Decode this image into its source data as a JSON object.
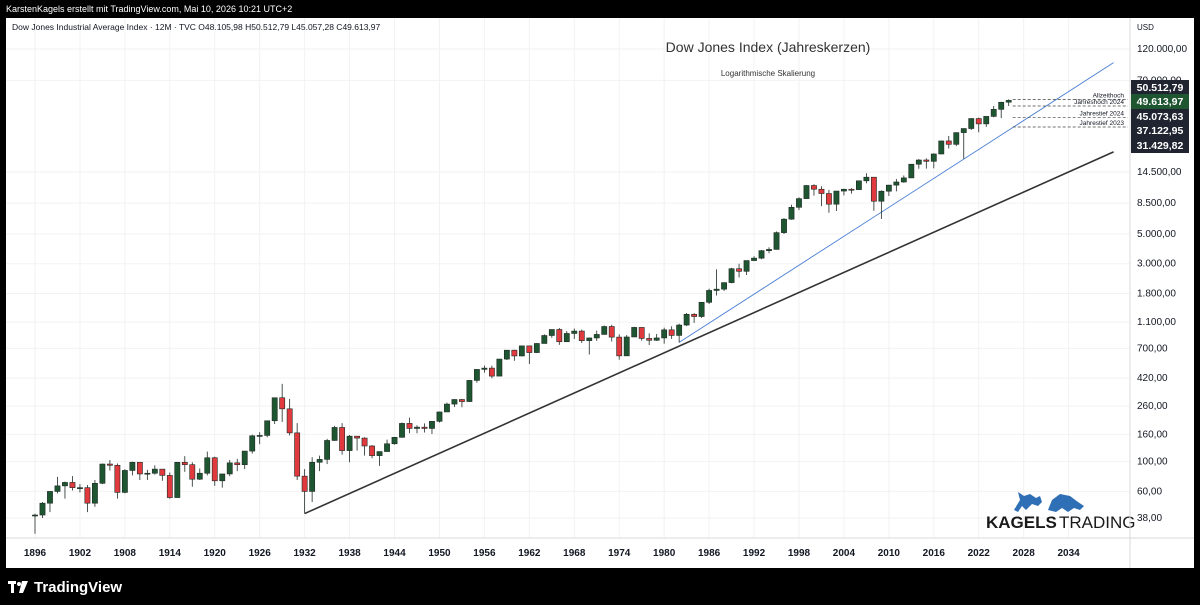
{
  "header": {
    "caption": "KarstenKagels erstellt mit TradingView.com, Mai 10, 2026 10:21 UTC+2"
  },
  "symbol_line": "Dow Jones Industrial Average Index · 12M · TVC  O48.105,98  H50.512,79  L45.057,28  C49.613,97",
  "footer": {
    "brand": "TradingView"
  },
  "watermark": {
    "text1": "KAGELS",
    "text2": "TRADING"
  },
  "colors": {
    "up": "#1e5631",
    "down": "#e0393e",
    "trend_primary": "#333333",
    "trend_secondary": "#4a7fd4",
    "label_dark": "#1f2430",
    "label_green": "#1e5631"
  },
  "chart_data": {
    "type": "candlestick",
    "title": "Dow Jones Index (Jahreskerzen)",
    "subtitle": "Logarithmische Skalierung",
    "y_axis_unit": "USD",
    "y_scale": "log",
    "y_ticks": [
      38,
      60,
      100,
      160,
      260,
      420,
      700,
      1100,
      1800,
      3000,
      5000,
      8500,
      14500,
      70000,
      120000
    ],
    "y_tick_labels": [
      "38,00",
      "60,00",
      "100,00",
      "160,00",
      "260,00",
      "420,00",
      "700,00",
      "1.100,00",
      "1.800,00",
      "3.000,00",
      "5.000,00",
      "8.500,00",
      "14.500,00",
      "70.000,00",
      "120.000,00"
    ],
    "x_ticks": [
      "1896",
      "1902",
      "1908",
      "1914",
      "1920",
      "1926",
      "1932",
      "1938",
      "1944",
      "1950",
      "1956",
      "1962",
      "1968",
      "1974",
      "1980",
      "1986",
      "1992",
      "1998",
      "2004",
      "2010",
      "2016",
      "2022",
      "2028",
      "2034"
    ],
    "price_labels": [
      {
        "value": 50512.79,
        "text": "50.512,79",
        "color": "dark"
      },
      {
        "value": 49613.97,
        "text": "49.613,97",
        "color": "green"
      },
      {
        "value": 45073.63,
        "text": "45.073,63",
        "color": "dark"
      },
      {
        "value": 37122.95,
        "text": "37.122,95",
        "color": "dark"
      },
      {
        "value": 31429.82,
        "text": "31.429,82",
        "color": "dark"
      }
    ],
    "annotations": [
      {
        "text": "Allzeithoch",
        "value": 50512.79
      },
      {
        "text": "Jahreshoch 2024",
        "value": 45073.63
      },
      {
        "text": "Jahrestief 2024",
        "value": 37122.95
      },
      {
        "text": "Jahrestief 2023",
        "value": 31429.82
      }
    ],
    "trendlines": [
      {
        "x1": 1932,
        "y1": 41,
        "x2": 2040,
        "y2": 20500,
        "color": "primary"
      },
      {
        "x1": 1982,
        "y1": 776,
        "x2": 2040,
        "y2": 95000,
        "color": "secondary"
      }
    ],
    "candles": [
      {
        "x": 1896,
        "o": 40,
        "h": 41,
        "l": 29,
        "c": 40
      },
      {
        "x": 1897,
        "o": 40,
        "h": 50,
        "l": 38,
        "c": 49
      },
      {
        "x": 1898,
        "o": 49,
        "h": 60,
        "l": 42,
        "c": 60
      },
      {
        "x": 1899,
        "o": 60,
        "h": 77,
        "l": 58,
        "c": 66
      },
      {
        "x": 1900,
        "o": 66,
        "h": 71,
        "l": 53,
        "c": 70
      },
      {
        "x": 1901,
        "o": 70,
        "h": 78,
        "l": 61,
        "c": 64
      },
      {
        "x": 1902,
        "o": 64,
        "h": 68,
        "l": 59,
        "c": 64
      },
      {
        "x": 1903,
        "o": 64,
        "h": 67,
        "l": 42,
        "c": 49
      },
      {
        "x": 1904,
        "o": 49,
        "h": 73,
        "l": 46,
        "c": 69
      },
      {
        "x": 1905,
        "o": 69,
        "h": 97,
        "l": 68,
        "c": 96
      },
      {
        "x": 1906,
        "o": 96,
        "h": 103,
        "l": 86,
        "c": 94
      },
      {
        "x": 1907,
        "o": 94,
        "h": 97,
        "l": 53,
        "c": 59
      },
      {
        "x": 1908,
        "o": 59,
        "h": 88,
        "l": 58,
        "c": 86
      },
      {
        "x": 1909,
        "o": 86,
        "h": 100,
        "l": 79,
        "c": 99
      },
      {
        "x": 1910,
        "o": 99,
        "h": 99,
        "l": 73,
        "c": 81
      },
      {
        "x": 1911,
        "o": 81,
        "h": 87,
        "l": 73,
        "c": 82
      },
      {
        "x": 1912,
        "o": 82,
        "h": 94,
        "l": 80,
        "c": 88
      },
      {
        "x": 1913,
        "o": 88,
        "h": 88,
        "l": 72,
        "c": 79
      },
      {
        "x": 1914,
        "o": 79,
        "h": 83,
        "l": 53,
        "c": 54
      },
      {
        "x": 1915,
        "o": 54,
        "h": 99,
        "l": 54,
        "c": 99
      },
      {
        "x": 1916,
        "o": 99,
        "h": 110,
        "l": 84,
        "c": 95
      },
      {
        "x": 1917,
        "o": 95,
        "h": 99,
        "l": 65,
        "c": 74
      },
      {
        "x": 1918,
        "o": 74,
        "h": 89,
        "l": 73,
        "c": 82
      },
      {
        "x": 1919,
        "o": 82,
        "h": 119,
        "l": 79,
        "c": 107
      },
      {
        "x": 1920,
        "o": 107,
        "h": 109,
        "l": 66,
        "c": 72
      },
      {
        "x": 1921,
        "o": 72,
        "h": 81,
        "l": 64,
        "c": 81
      },
      {
        "x": 1922,
        "o": 81,
        "h": 103,
        "l": 78,
        "c": 98
      },
      {
        "x": 1923,
        "o": 98,
        "h": 105,
        "l": 85,
        "c": 95
      },
      {
        "x": 1924,
        "o": 95,
        "h": 120,
        "l": 88,
        "c": 120
      },
      {
        "x": 1925,
        "o": 120,
        "h": 159,
        "l": 115,
        "c": 156
      },
      {
        "x": 1926,
        "o": 156,
        "h": 166,
        "l": 135,
        "c": 157
      },
      {
        "x": 1927,
        "o": 157,
        "h": 202,
        "l": 152,
        "c": 202
      },
      {
        "x": 1928,
        "o": 202,
        "h": 300,
        "l": 191,
        "c": 300
      },
      {
        "x": 1929,
        "o": 300,
        "h": 381,
        "l": 198,
        "c": 248
      },
      {
        "x": 1930,
        "o": 248,
        "h": 294,
        "l": 157,
        "c": 164
      },
      {
        "x": 1931,
        "o": 164,
        "h": 194,
        "l": 73,
        "c": 78
      },
      {
        "x": 1932,
        "o": 78,
        "h": 88,
        "l": 41,
        "c": 60
      },
      {
        "x": 1933,
        "o": 60,
        "h": 108,
        "l": 50,
        "c": 99
      },
      {
        "x": 1934,
        "o": 99,
        "h": 111,
        "l": 85,
        "c": 104
      },
      {
        "x": 1935,
        "o": 104,
        "h": 148,
        "l": 96,
        "c": 144
      },
      {
        "x": 1936,
        "o": 144,
        "h": 185,
        "l": 143,
        "c": 180
      },
      {
        "x": 1937,
        "o": 180,
        "h": 194,
        "l": 113,
        "c": 121
      },
      {
        "x": 1938,
        "o": 121,
        "h": 158,
        "l": 99,
        "c": 155
      },
      {
        "x": 1939,
        "o": 155,
        "h": 155,
        "l": 121,
        "c": 150
      },
      {
        "x": 1940,
        "o": 150,
        "h": 152,
        "l": 111,
        "c": 131
      },
      {
        "x": 1941,
        "o": 131,
        "h": 133,
        "l": 106,
        "c": 111
      },
      {
        "x": 1942,
        "o": 111,
        "h": 119,
        "l": 93,
        "c": 119
      },
      {
        "x": 1943,
        "o": 119,
        "h": 146,
        "l": 119,
        "c": 136
      },
      {
        "x": 1944,
        "o": 136,
        "h": 153,
        "l": 134,
        "c": 152
      },
      {
        "x": 1945,
        "o": 152,
        "h": 196,
        "l": 151,
        "c": 193
      },
      {
        "x": 1946,
        "o": 193,
        "h": 213,
        "l": 163,
        "c": 177
      },
      {
        "x": 1947,
        "o": 177,
        "h": 187,
        "l": 163,
        "c": 181
      },
      {
        "x": 1948,
        "o": 181,
        "h": 193,
        "l": 165,
        "c": 177
      },
      {
        "x": 1949,
        "o": 177,
        "h": 200,
        "l": 161,
        "c": 200
      },
      {
        "x": 1950,
        "o": 200,
        "h": 236,
        "l": 196,
        "c": 235
      },
      {
        "x": 1951,
        "o": 235,
        "h": 276,
        "l": 238,
        "c": 269
      },
      {
        "x": 1952,
        "o": 269,
        "h": 292,
        "l": 256,
        "c": 291
      },
      {
        "x": 1953,
        "o": 291,
        "h": 294,
        "l": 255,
        "c": 281
      },
      {
        "x": 1954,
        "o": 281,
        "h": 404,
        "l": 279,
        "c": 404
      },
      {
        "x": 1955,
        "o": 404,
        "h": 488,
        "l": 388,
        "c": 488
      },
      {
        "x": 1956,
        "o": 488,
        "h": 521,
        "l": 462,
        "c": 499
      },
      {
        "x": 1957,
        "o": 499,
        "h": 520,
        "l": 419,
        "c": 435
      },
      {
        "x": 1958,
        "o": 435,
        "h": 583,
        "l": 436,
        "c": 583
      },
      {
        "x": 1959,
        "o": 583,
        "h": 679,
        "l": 574,
        "c": 679
      },
      {
        "x": 1960,
        "o": 679,
        "h": 685,
        "l": 566,
        "c": 615
      },
      {
        "x": 1961,
        "o": 615,
        "h": 734,
        "l": 610,
        "c": 731
      },
      {
        "x": 1962,
        "o": 731,
        "h": 726,
        "l": 535,
        "c": 652
      },
      {
        "x": 1963,
        "o": 652,
        "h": 767,
        "l": 646,
        "c": 762
      },
      {
        "x": 1964,
        "o": 762,
        "h": 891,
        "l": 766,
        "c": 874
      },
      {
        "x": 1965,
        "o": 874,
        "h": 969,
        "l": 840,
        "c": 969
      },
      {
        "x": 1966,
        "o": 969,
        "h": 995,
        "l": 744,
        "c": 785
      },
      {
        "x": 1967,
        "o": 785,
        "h": 943,
        "l": 786,
        "c": 905
      },
      {
        "x": 1968,
        "o": 905,
        "h": 985,
        "l": 825,
        "c": 943
      },
      {
        "x": 1969,
        "o": 943,
        "h": 968,
        "l": 769,
        "c": 800
      },
      {
        "x": 1970,
        "o": 800,
        "h": 842,
        "l": 631,
        "c": 838
      },
      {
        "x": 1971,
        "o": 838,
        "h": 950,
        "l": 797,
        "c": 890
      },
      {
        "x": 1972,
        "o": 890,
        "h": 1036,
        "l": 889,
        "c": 1020
      },
      {
        "x": 1973,
        "o": 1020,
        "h": 1051,
        "l": 788,
        "c": 850
      },
      {
        "x": 1974,
        "o": 850,
        "h": 891,
        "l": 577,
        "c": 616
      },
      {
        "x": 1975,
        "o": 616,
        "h": 881,
        "l": 632,
        "c": 852
      },
      {
        "x": 1976,
        "o": 852,
        "h": 1014,
        "l": 858,
        "c": 1004
      },
      {
        "x": 1977,
        "o": 1004,
        "h": 999,
        "l": 800,
        "c": 831
      },
      {
        "x": 1978,
        "o": 831,
        "h": 907,
        "l": 742,
        "c": 805
      },
      {
        "x": 1979,
        "o": 805,
        "h": 897,
        "l": 796,
        "c": 838
      },
      {
        "x": 1980,
        "o": 838,
        "h": 1000,
        "l": 759,
        "c": 963
      },
      {
        "x": 1981,
        "o": 963,
        "h": 1024,
        "l": 824,
        "c": 875
      },
      {
        "x": 1982,
        "o": 875,
        "h": 1070,
        "l": 776,
        "c": 1046
      },
      {
        "x": 1983,
        "o": 1046,
        "h": 1287,
        "l": 1027,
        "c": 1258
      },
      {
        "x": 1984,
        "o": 1258,
        "h": 1287,
        "l": 1086,
        "c": 1211
      },
      {
        "x": 1985,
        "o": 1211,
        "h": 1553,
        "l": 1184,
        "c": 1546
      },
      {
        "x": 1986,
        "o": 1546,
        "h": 1955,
        "l": 1502,
        "c": 1895
      },
      {
        "x": 1987,
        "o": 1895,
        "h": 2722,
        "l": 1738,
        "c": 1938
      },
      {
        "x": 1988,
        "o": 1938,
        "h": 2183,
        "l": 1879,
        "c": 2168
      },
      {
        "x": 1989,
        "o": 2168,
        "h": 2791,
        "l": 2144,
        "c": 2753
      },
      {
        "x": 1990,
        "o": 2753,
        "h": 2999,
        "l": 2365,
        "c": 2633
      },
      {
        "x": 1991,
        "o": 2633,
        "h": 3168,
        "l": 2470,
        "c": 3168
      },
      {
        "x": 1992,
        "o": 3168,
        "h": 3413,
        "l": 3136,
        "c": 3301
      },
      {
        "x": 1993,
        "o": 3301,
        "h": 3794,
        "l": 3242,
        "c": 3754
      },
      {
        "x": 1994,
        "o": 3754,
        "h": 3978,
        "l": 3593,
        "c": 3834
      },
      {
        "x": 1995,
        "o": 3834,
        "h": 5216,
        "l": 3832,
        "c": 5117
      },
      {
        "x": 1996,
        "o": 5117,
        "h": 6560,
        "l": 5000,
        "c": 6448
      },
      {
        "x": 1997,
        "o": 6448,
        "h": 8259,
        "l": 6391,
        "c": 7908
      },
      {
        "x": 1998,
        "o": 7908,
        "h": 9374,
        "l": 7539,
        "c": 9181
      },
      {
        "x": 1999,
        "o": 9181,
        "h": 11568,
        "l": 9121,
        "c": 11497
      },
      {
        "x": 2000,
        "o": 11497,
        "h": 11750,
        "l": 9654,
        "c": 10787
      },
      {
        "x": 2001,
        "o": 10787,
        "h": 11350,
        "l": 8062,
        "c": 10021
      },
      {
        "x": 2002,
        "o": 10021,
        "h": 10673,
        "l": 7197,
        "c": 8341
      },
      {
        "x": 2003,
        "o": 8341,
        "h": 10462,
        "l": 7416,
        "c": 10454
      },
      {
        "x": 2004,
        "o": 10454,
        "h": 10868,
        "l": 9708,
        "c": 10783
      },
      {
        "x": 2005,
        "o": 10783,
        "h": 10984,
        "l": 10000,
        "c": 10717
      },
      {
        "x": 2006,
        "o": 10717,
        "h": 12529,
        "l": 10667,
        "c": 12463
      },
      {
        "x": 2007,
        "o": 12463,
        "h": 14198,
        "l": 11939,
        "c": 13264
      },
      {
        "x": 2008,
        "o": 13264,
        "h": 13279,
        "l": 7449,
        "c": 8776
      },
      {
        "x": 2009,
        "o": 8776,
        "h": 10580,
        "l": 6470,
        "c": 10428
      },
      {
        "x": 2010,
        "o": 10428,
        "h": 11625,
        "l": 9614,
        "c": 11577
      },
      {
        "x": 2011,
        "o": 11577,
        "h": 12876,
        "l": 10404,
        "c": 12217
      },
      {
        "x": 2012,
        "o": 12217,
        "h": 13661,
        "l": 12035,
        "c": 13104
      },
      {
        "x": 2013,
        "o": 13104,
        "h": 16588,
        "l": 13104,
        "c": 16576
      },
      {
        "x": 2014,
        "o": 16576,
        "h": 18103,
        "l": 15340,
        "c": 17823
      },
      {
        "x": 2015,
        "o": 17823,
        "h": 18351,
        "l": 15370,
        "c": 17425
      },
      {
        "x": 2016,
        "o": 17425,
        "h": 19987,
        "l": 15450,
        "c": 19762
      },
      {
        "x": 2017,
        "o": 19762,
        "h": 24876,
        "l": 19677,
        "c": 24719
      },
      {
        "x": 2018,
        "o": 24719,
        "h": 26951,
        "l": 21712,
        "c": 23327
      },
      {
        "x": 2019,
        "o": 23327,
        "h": 28701,
        "l": 22638,
        "c": 28538
      },
      {
        "x": 2020,
        "o": 28538,
        "h": 30637,
        "l": 18213,
        "c": 30606
      },
      {
        "x": 2021,
        "o": 30606,
        "h": 36565,
        "l": 29856,
        "c": 36338
      },
      {
        "x": 2022,
        "o": 36338,
        "h": 36952,
        "l": 28660,
        "c": 33147
      },
      {
        "x": 2023,
        "o": 33147,
        "h": 37778,
        "l": 31429.82,
        "c": 37689
      },
      {
        "x": 2024,
        "o": 37689,
        "h": 45073.63,
        "l": 37122.95,
        "c": 42544
      },
      {
        "x": 2025,
        "o": 42544,
        "h": 48432,
        "l": 36611,
        "c": 48063
      },
      {
        "x": 2026,
        "o": 48105.98,
        "h": 50512.79,
        "l": 45057.28,
        "c": 49613.97
      }
    ]
  }
}
